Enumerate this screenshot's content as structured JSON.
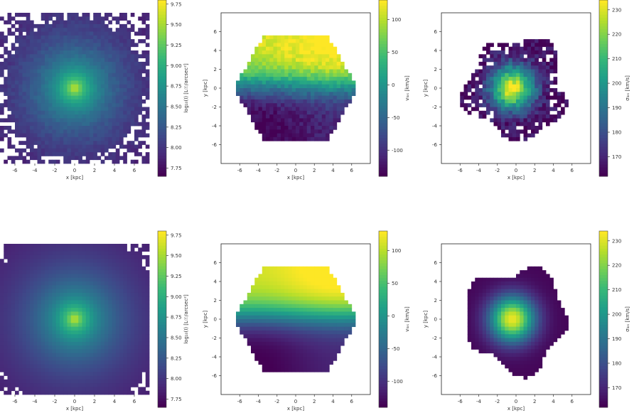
{
  "figure": {
    "panels_description": "2 x 3 grid of galaxy maps"
  },
  "chart_data": [
    {
      "type": "heatmap",
      "quantity": "surface_brightness",
      "row": "top",
      "map": "surface brightness",
      "xlabel": "x [kpc]",
      "ylabel": "",
      "xticks": [
        "-6",
        "-4",
        "-2",
        "0",
        "2",
        "4",
        "6"
      ],
      "yticks": [],
      "xlim": [
        -7.5,
        7.5
      ],
      "ylim": [
        -7.5,
        7.5
      ],
      "colormap": "viridis",
      "colorbar": {
        "label": "log₁₀(I) [L☉/arcsec²]",
        "range": [
          7.65,
          9.8
        ],
        "ticks": [
          "9.75",
          "9.50",
          "9.25",
          "9.00",
          "8.75",
          "8.50",
          "8.25",
          "8.00",
          "7.75"
        ]
      },
      "center_value": 9.75,
      "edge_value": 7.7,
      "noisy": true
    },
    {
      "type": "heatmap",
      "quantity": "velocity",
      "row": "top",
      "map": "line-of-sight velocity",
      "xlabel": "x [kpc]",
      "ylabel": "y [kpc]",
      "xticks": [
        "-6",
        "-4",
        "-2",
        "0",
        "2",
        "4",
        "6"
      ],
      "yticks": [
        "6",
        "4",
        "2",
        "0",
        "-2",
        "-4",
        "-6"
      ],
      "xlim": [
        -8,
        8
      ],
      "ylim": [
        -8,
        8
      ],
      "colormap": "viridis",
      "colorbar": {
        "label": "vₗₒₛ [km/s]",
        "range": [
          -140,
          130
        ],
        "ticks": [
          "100",
          "50",
          "0",
          "-50",
          "-100"
        ]
      },
      "amplitude": 130,
      "noisy": true
    },
    {
      "type": "heatmap",
      "quantity": "dispersion",
      "row": "top",
      "map": "velocity dispersion",
      "xlabel": "x [kpc]",
      "ylabel": "y [kpc]",
      "xticks": [
        "-6",
        "-4",
        "-2",
        "0",
        "2",
        "4",
        "6"
      ],
      "yticks": [
        "6",
        "4",
        "2",
        "0",
        "-2",
        "-4",
        "-6"
      ],
      "xlim": [
        -8,
        8
      ],
      "ylim": [
        -8,
        8
      ],
      "colormap": "viridis",
      "colorbar": {
        "label": "σₗₒₛ [km/s]",
        "range": [
          162,
          234
        ],
        "ticks": [
          "230",
          "220",
          "210",
          "200",
          "190",
          "180",
          "170"
        ]
      },
      "center_value": 232,
      "edge_value": 163,
      "noisy": true
    },
    {
      "type": "heatmap",
      "quantity": "surface_brightness",
      "row": "bottom",
      "map": "surface brightness",
      "xlabel": "x [kpc]",
      "ylabel": "",
      "xticks": [
        "-6",
        "-4",
        "-2",
        "0",
        "2",
        "4",
        "6"
      ],
      "yticks": [],
      "xlim": [
        -7.5,
        7.5
      ],
      "ylim": [
        -7.5,
        7.5
      ],
      "colormap": "viridis",
      "colorbar": {
        "label": "log₁₀(I) [L☉/arcsec²]",
        "range": [
          7.65,
          9.8
        ],
        "ticks": [
          "9.75",
          "9.50",
          "9.25",
          "9.00",
          "8.75",
          "8.50",
          "8.25",
          "8.00",
          "7.75"
        ]
      },
      "center_value": 9.75,
      "edge_value": 7.7,
      "noisy": false
    },
    {
      "type": "heatmap",
      "quantity": "velocity",
      "row": "bottom",
      "map": "line-of-sight velocity",
      "xlabel": "x [kpc]",
      "ylabel": "y [kpc]",
      "xticks": [
        "-6",
        "-4",
        "-2",
        "0",
        "2",
        "4",
        "6"
      ],
      "yticks": [
        "6",
        "4",
        "2",
        "0",
        "-2",
        "-4",
        "-6"
      ],
      "xlim": [
        -8,
        8
      ],
      "ylim": [
        -8,
        8
      ],
      "colormap": "viridis",
      "colorbar": {
        "label": "vₗₒₛ [km/s]",
        "range": [
          -140,
          130
        ],
        "ticks": [
          "100",
          "50",
          "0",
          "-50",
          "-100"
        ]
      },
      "amplitude": 130,
      "noisy": false
    },
    {
      "type": "heatmap",
      "quantity": "dispersion",
      "row": "bottom",
      "map": "velocity dispersion",
      "xlabel": "x [kpc]",
      "ylabel": "y [kpc]",
      "xticks": [
        "-6",
        "-4",
        "-2",
        "0",
        "2",
        "4",
        "6"
      ],
      "yticks": [
        "6",
        "4",
        "2",
        "0",
        "-2",
        "-4",
        "-6"
      ],
      "xlim": [
        -8,
        8
      ],
      "ylim": [
        -8,
        8
      ],
      "colormap": "viridis",
      "colorbar": {
        "label": "σₗₒₛ [km/s]",
        "range": [
          162,
          234
        ],
        "ticks": [
          "230",
          "220",
          "210",
          "200",
          "190",
          "180",
          "170"
        ]
      },
      "center_value": 232,
      "edge_value": 163,
      "noisy": false
    }
  ]
}
